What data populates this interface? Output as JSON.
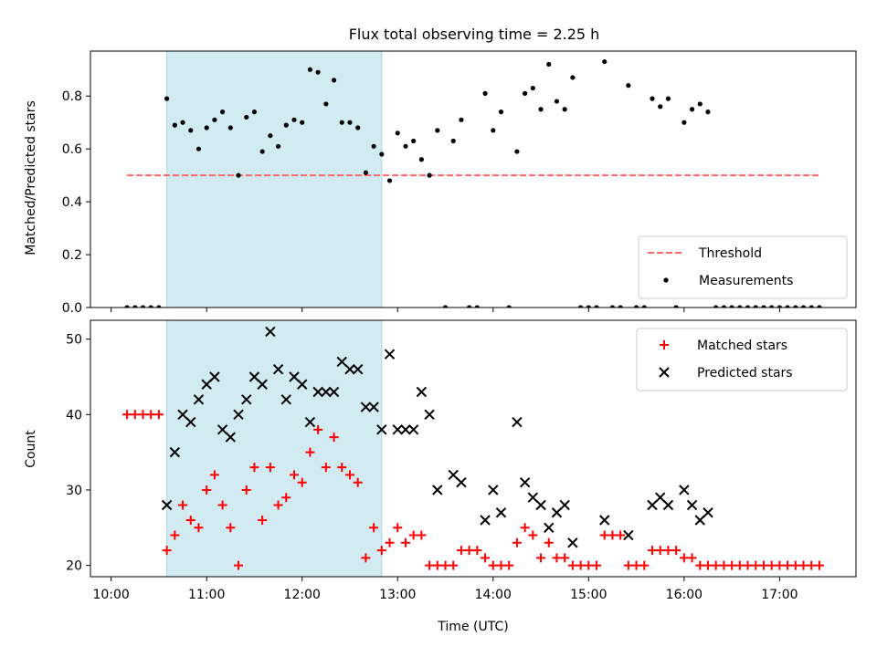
{
  "title": "Flux total observing time = 2.25 h",
  "colors": {
    "threshold": "#ff6666",
    "measurement": "#000000",
    "matched": "#ff0000",
    "predicted": "#000000",
    "shade": "#add8e6"
  },
  "chart_data": [
    {
      "type": "scatter",
      "ylabel": "Matched/Predicted stars",
      "ylim": [
        0,
        0.97
      ],
      "yticks": [
        0.0,
        0.2,
        0.4,
        0.6,
        0.8
      ],
      "ytick_labels": [
        "0.0",
        "0.2",
        "0.4",
        "0.6",
        "0.8"
      ],
      "xlim": [
        "09:47",
        "17:48"
      ],
      "shaded_span": [
        "10:35",
        "12:50"
      ],
      "threshold": {
        "label": "Threshold",
        "value": 0.5,
        "x_range": [
          "10:10",
          "17:25"
        ]
      },
      "legend": {
        "placement": "lower right",
        "entries": [
          "Threshold",
          "Measurements"
        ]
      },
      "series": [
        {
          "name": "Measurements",
          "points": [
            [
              "10:10",
              0.0
            ],
            [
              "10:15",
              0.0
            ],
            [
              "10:20",
              0.0
            ],
            [
              "10:25",
              0.0
            ],
            [
              "10:30",
              0.0
            ],
            [
              "10:35",
              0.79
            ],
            [
              "10:40",
              0.69
            ],
            [
              "10:45",
              0.7
            ],
            [
              "10:50",
              0.67
            ],
            [
              "10:55",
              0.6
            ],
            [
              "11:00",
              0.68
            ],
            [
              "11:05",
              0.71
            ],
            [
              "11:10",
              0.74
            ],
            [
              "11:15",
              0.68
            ],
            [
              "11:20",
              0.5
            ],
            [
              "11:25",
              0.72
            ],
            [
              "11:30",
              0.74
            ],
            [
              "11:35",
              0.59
            ],
            [
              "11:40",
              0.65
            ],
            [
              "11:45",
              0.61
            ],
            [
              "11:50",
              0.69
            ],
            [
              "11:55",
              0.71
            ],
            [
              "12:00",
              0.7
            ],
            [
              "12:05",
              0.9
            ],
            [
              "12:10",
              0.89
            ],
            [
              "12:15",
              0.77
            ],
            [
              "12:20",
              0.86
            ],
            [
              "12:25",
              0.7
            ],
            [
              "12:30",
              0.7
            ],
            [
              "12:35",
              0.68
            ],
            [
              "12:40",
              0.51
            ],
            [
              "12:45",
              0.61
            ],
            [
              "12:50",
              0.58
            ],
            [
              "12:55",
              0.48
            ],
            [
              "13:00",
              0.66
            ],
            [
              "13:05",
              0.61
            ],
            [
              "13:10",
              0.63
            ],
            [
              "13:15",
              0.56
            ],
            [
              "13:20",
              0.5
            ],
            [
              "13:25",
              0.67
            ],
            [
              "13:30",
              0.0
            ],
            [
              "13:35",
              0.63
            ],
            [
              "13:40",
              0.71
            ],
            [
              "13:45",
              0.0
            ],
            [
              "13:50",
              0.0
            ],
            [
              "13:55",
              0.81
            ],
            [
              "14:00",
              0.67
            ],
            [
              "14:05",
              0.74
            ],
            [
              "14:10",
              0.0
            ],
            [
              "14:15",
              0.59
            ],
            [
              "14:20",
              0.81
            ],
            [
              "14:25",
              0.83
            ],
            [
              "14:30",
              0.75
            ],
            [
              "14:35",
              0.92
            ],
            [
              "14:40",
              0.78
            ],
            [
              "14:45",
              0.75
            ],
            [
              "14:50",
              0.87
            ],
            [
              "14:55",
              0.0
            ],
            [
              "15:00",
              0.0
            ],
            [
              "15:05",
              0.0
            ],
            [
              "15:10",
              0.93
            ],
            [
              "15:15",
              0.0
            ],
            [
              "15:20",
              0.0
            ],
            [
              "15:25",
              0.84
            ],
            [
              "15:30",
              0.0
            ],
            [
              "15:35",
              0.0
            ],
            [
              "15:40",
              0.79
            ],
            [
              "15:45",
              0.76
            ],
            [
              "15:50",
              0.79
            ],
            [
              "15:55",
              0.0
            ],
            [
              "16:00",
              0.7
            ],
            [
              "16:05",
              0.75
            ],
            [
              "16:10",
              0.77
            ],
            [
              "16:15",
              0.74
            ],
            [
              "16:20",
              0.0
            ],
            [
              "16:25",
              0.0
            ],
            [
              "16:30",
              0.0
            ],
            [
              "16:35",
              0.0
            ],
            [
              "16:40",
              0.0
            ],
            [
              "16:45",
              0.0
            ],
            [
              "16:50",
              0.0
            ],
            [
              "16:55",
              0.0
            ],
            [
              "17:00",
              0.0
            ],
            [
              "17:05",
              0.0
            ],
            [
              "17:10",
              0.0
            ],
            [
              "17:15",
              0.0
            ],
            [
              "17:20",
              0.0
            ],
            [
              "17:25",
              0.0
            ]
          ]
        }
      ]
    },
    {
      "type": "scatter",
      "xlabel": "Time (UTC)",
      "ylabel": "Count",
      "ylim": [
        18.5,
        52.5
      ],
      "yticks": [
        20,
        30,
        40,
        50
      ],
      "ytick_labels": [
        "20",
        "30",
        "40",
        "50"
      ],
      "xlim": [
        "09:47",
        "17:48"
      ],
      "xticks": [
        "10:00",
        "11:00",
        "12:00",
        "13:00",
        "14:00",
        "15:00",
        "16:00",
        "17:00"
      ],
      "xtick_labels": [
        "10:00",
        "11:00",
        "12:00",
        "13:00",
        "14:00",
        "15:00",
        "16:00",
        "17:00"
      ],
      "shaded_span": [
        "10:35",
        "12:50"
      ],
      "legend": {
        "placement": "upper right",
        "entries": [
          "Matched stars",
          "Predicted stars"
        ]
      },
      "series": [
        {
          "name": "Matched stars",
          "points": [
            [
              "10:10",
              40
            ],
            [
              "10:15",
              40
            ],
            [
              "10:20",
              40
            ],
            [
              "10:25",
              40
            ],
            [
              "10:30",
              40
            ],
            [
              "10:35",
              22
            ],
            [
              "10:40",
              24
            ],
            [
              "10:45",
              28
            ],
            [
              "10:50",
              26
            ],
            [
              "10:55",
              25
            ],
            [
              "11:00",
              30
            ],
            [
              "11:05",
              32
            ],
            [
              "11:10",
              28
            ],
            [
              "11:15",
              25
            ],
            [
              "11:20",
              20
            ],
            [
              "11:25",
              30
            ],
            [
              "11:30",
              33
            ],
            [
              "11:35",
              26
            ],
            [
              "11:40",
              33
            ],
            [
              "11:45",
              28
            ],
            [
              "11:50",
              29
            ],
            [
              "11:55",
              32
            ],
            [
              "12:00",
              31
            ],
            [
              "12:05",
              35
            ],
            [
              "12:10",
              38
            ],
            [
              "12:15",
              33
            ],
            [
              "12:20",
              37
            ],
            [
              "12:25",
              33
            ],
            [
              "12:30",
              32
            ],
            [
              "12:35",
              31
            ],
            [
              "12:40",
              21
            ],
            [
              "12:45",
              25
            ],
            [
              "12:50",
              22
            ],
            [
              "12:55",
              23
            ],
            [
              "13:00",
              25
            ],
            [
              "13:05",
              23
            ],
            [
              "13:10",
              24
            ],
            [
              "13:15",
              24
            ],
            [
              "13:20",
              20
            ],
            [
              "13:25",
              20
            ],
            [
              "13:30",
              20
            ],
            [
              "13:35",
              20
            ],
            [
              "13:40",
              22
            ],
            [
              "13:45",
              22
            ],
            [
              "13:50",
              22
            ],
            [
              "13:55",
              21
            ],
            [
              "14:00",
              20
            ],
            [
              "14:05",
              20
            ],
            [
              "14:10",
              20
            ],
            [
              "14:15",
              23
            ],
            [
              "14:20",
              25
            ],
            [
              "14:25",
              24
            ],
            [
              "14:30",
              21
            ],
            [
              "14:35",
              23
            ],
            [
              "14:40",
              21
            ],
            [
              "14:45",
              21
            ],
            [
              "14:50",
              20
            ],
            [
              "14:55",
              20
            ],
            [
              "15:00",
              20
            ],
            [
              "15:05",
              20
            ],
            [
              "15:10",
              24
            ],
            [
              "15:15",
              24
            ],
            [
              "15:20",
              24
            ],
            [
              "15:25",
              20
            ],
            [
              "15:30",
              20
            ],
            [
              "15:35",
              20
            ],
            [
              "15:40",
              22
            ],
            [
              "15:45",
              22
            ],
            [
              "15:50",
              22
            ],
            [
              "15:55",
              22
            ],
            [
              "16:00",
              21
            ],
            [
              "16:05",
              21
            ],
            [
              "16:10",
              20
            ],
            [
              "16:15",
              20
            ],
            [
              "16:20",
              20
            ],
            [
              "16:25",
              20
            ],
            [
              "16:30",
              20
            ],
            [
              "16:35",
              20
            ],
            [
              "16:40",
              20
            ],
            [
              "16:45",
              20
            ],
            [
              "16:50",
              20
            ],
            [
              "16:55",
              20
            ],
            [
              "17:00",
              20
            ],
            [
              "17:05",
              20
            ],
            [
              "17:10",
              20
            ],
            [
              "17:15",
              20
            ],
            [
              "17:20",
              20
            ],
            [
              "17:25",
              20
            ]
          ]
        },
        {
          "name": "Predicted stars",
          "points": [
            [
              "10:35",
              28
            ],
            [
              "10:40",
              35
            ],
            [
              "10:45",
              40
            ],
            [
              "10:50",
              39
            ],
            [
              "10:55",
              42
            ],
            [
              "11:00",
              44
            ],
            [
              "11:05",
              45
            ],
            [
              "11:10",
              38
            ],
            [
              "11:15",
              37
            ],
            [
              "11:20",
              40
            ],
            [
              "11:25",
              42
            ],
            [
              "11:30",
              45
            ],
            [
              "11:35",
              44
            ],
            [
              "11:40",
              51
            ],
            [
              "11:45",
              46
            ],
            [
              "11:50",
              42
            ],
            [
              "11:55",
              45
            ],
            [
              "12:00",
              44
            ],
            [
              "12:05",
              39
            ],
            [
              "12:10",
              43
            ],
            [
              "12:15",
              43
            ],
            [
              "12:20",
              43
            ],
            [
              "12:25",
              47
            ],
            [
              "12:30",
              46
            ],
            [
              "12:35",
              46
            ],
            [
              "12:40",
              41
            ],
            [
              "12:45",
              41
            ],
            [
              "12:50",
              38
            ],
            [
              "12:55",
              48
            ],
            [
              "13:00",
              38
            ],
            [
              "13:05",
              38
            ],
            [
              "13:10",
              38
            ],
            [
              "13:15",
              43
            ],
            [
              "13:20",
              40
            ],
            [
              "13:25",
              30
            ],
            [
              "13:35",
              32
            ],
            [
              "13:40",
              31
            ],
            [
              "13:55",
              26
            ],
            [
              "14:00",
              30
            ],
            [
              "14:05",
              27
            ],
            [
              "14:15",
              39
            ],
            [
              "14:20",
              31
            ],
            [
              "14:25",
              29
            ],
            [
              "14:30",
              28
            ],
            [
              "14:35",
              25
            ],
            [
              "14:40",
              27
            ],
            [
              "14:45",
              28
            ],
            [
              "14:50",
              23
            ],
            [
              "15:10",
              26
            ],
            [
              "15:25",
              24
            ],
            [
              "15:40",
              28
            ],
            [
              "15:45",
              29
            ],
            [
              "15:50",
              28
            ],
            [
              "16:00",
              30
            ],
            [
              "16:05",
              28
            ],
            [
              "16:10",
              26
            ],
            [
              "16:15",
              27
            ]
          ]
        }
      ]
    }
  ]
}
